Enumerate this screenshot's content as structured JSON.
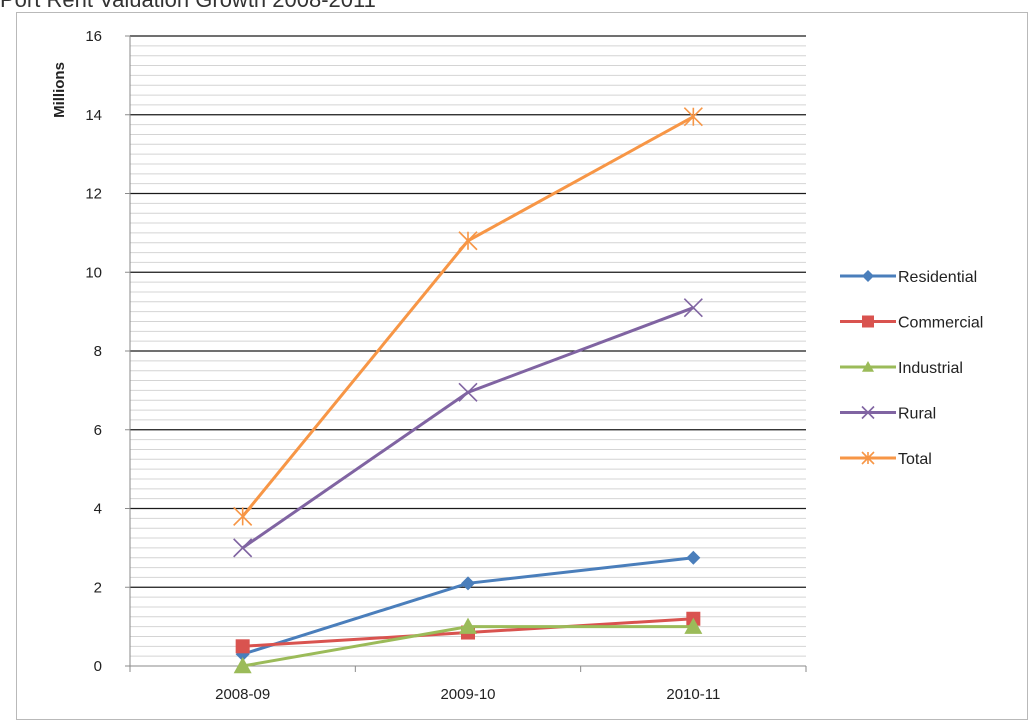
{
  "chart_data": {
    "type": "line",
    "title": "Port Rent Valuation Growth 2008-2011",
    "ylabel": "Millions",
    "xlabel": "",
    "categories": [
      "2008-09",
      "2009-10",
      "2010-11"
    ],
    "ylim": [
      0,
      16
    ],
    "yticks": [
      0,
      2,
      4,
      6,
      8,
      10,
      12,
      14,
      16
    ],
    "grid": true,
    "legend_position": "right",
    "series": [
      {
        "name": "Residential",
        "values": [
          0.3,
          2.1,
          2.75
        ],
        "color": "#4a7ebb",
        "marker": "diamond"
      },
      {
        "name": "Commercial",
        "values": [
          0.5,
          0.85,
          1.2
        ],
        "color": "#d9534f",
        "marker": "square"
      },
      {
        "name": "Industrial",
        "values": [
          0.0,
          1.0,
          1.0
        ],
        "color": "#9bbb59",
        "marker": "triangle"
      },
      {
        "name": "Rural",
        "values": [
          3.0,
          6.95,
          9.1
        ],
        "color": "#8064a2",
        "marker": "x"
      },
      {
        "name": "Total",
        "values": [
          3.8,
          10.8,
          13.95
        ],
        "color": "#f79646",
        "marker": "star"
      }
    ]
  }
}
